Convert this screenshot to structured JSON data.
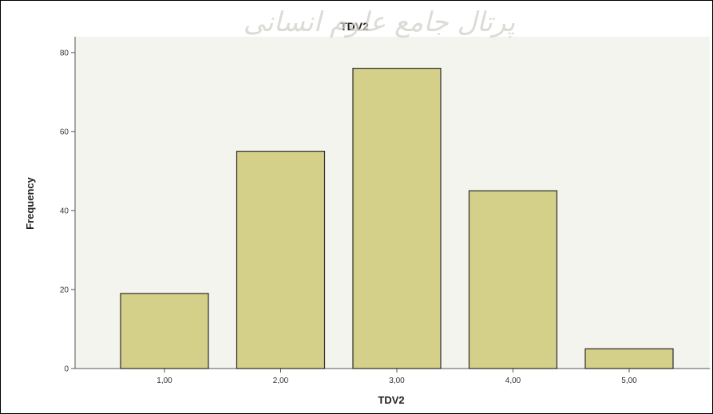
{
  "watermark": "پرتال جامع علوم انسانی",
  "chart_data": {
    "type": "bar",
    "title": "TDV2",
    "xlabel": "TDV2",
    "ylabel": "Frequency",
    "categories": [
      "1,00",
      "2,00",
      "3,00",
      "4,00",
      "5,00"
    ],
    "values": [
      19,
      55,
      76,
      45,
      5
    ],
    "ylim": [
      0,
      84
    ],
    "yticks": [
      "0",
      "20",
      "40",
      "60",
      "80"
    ],
    "ytick_values": [
      0,
      20,
      40,
      60,
      80
    ],
    "grid": false,
    "legend": "none",
    "colors": {
      "bar_fill": "#d5d089",
      "bar_stroke": "#2b2b2b",
      "plot_bg": "#f4f4ef",
      "axis": "#555555"
    }
  }
}
